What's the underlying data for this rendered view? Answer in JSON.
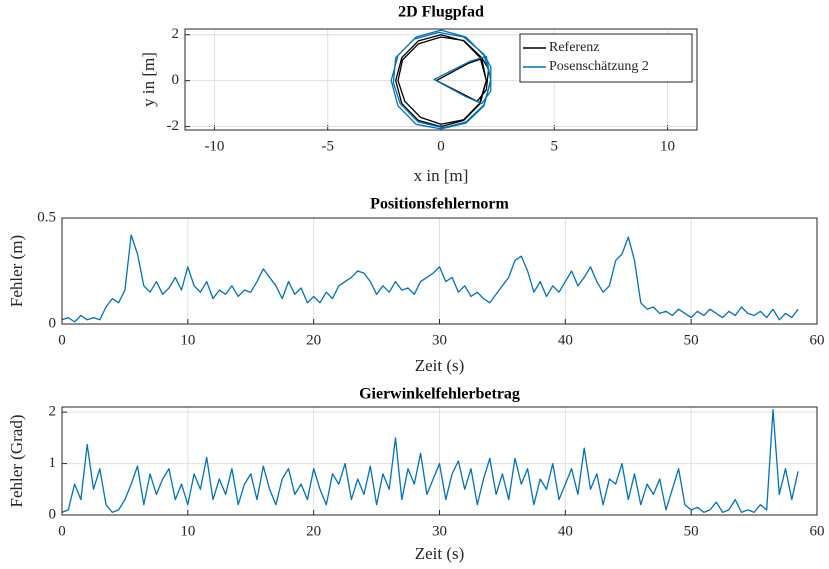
{
  "chart_data": [
    {
      "type": "line",
      "title": "2D Flugpfad",
      "x_label": "x in [m]",
      "y_label": "y in [m]",
      "xlim": [
        -11.3,
        11.3
      ],
      "ylim": [
        -2.15,
        2.25
      ],
      "xticks": [
        -10,
        -5,
        0,
        5,
        10
      ],
      "yticks": [
        -2,
        0,
        2
      ],
      "grid": true,
      "legend": "upper right",
      "series": [
        {
          "name": "Referenz",
          "color": "#000000",
          "x": [
            2,
            1.73,
            1,
            0,
            -1,
            -1.73,
            -2,
            -1.73,
            -1,
            0,
            1,
            1.73,
            2,
            1.8,
            1.2,
            -0.2,
            1.0,
            1.6,
            2.0,
            2.1,
            1.8,
            1.0,
            0,
            -1,
            -1.7,
            -1.9,
            -1.6,
            -0.9,
            0,
            1,
            1.7,
            2.0
          ],
          "values": [
            0,
            1,
            1.73,
            2,
            1.73,
            1,
            0,
            -1,
            -1.73,
            -2,
            -1.73,
            -1,
            0,
            0.95,
            0.75,
            0,
            -0.6,
            -0.9,
            -0.4,
            0.5,
            1.0,
            1.75,
            1.9,
            1.6,
            0.9,
            0,
            -0.9,
            -1.6,
            -1.9,
            -1.7,
            -1.0,
            0
          ]
        },
        {
          "name": "Posenschätzung 2",
          "color": "#0072bd",
          "x": [
            2.2,
            1.9,
            1.1,
            0,
            -1.1,
            -1.9,
            -2.2,
            -1.9,
            -1.1,
            0,
            1.1,
            1.9,
            2.2,
            2.0,
            1.3,
            -0.3,
            1.1,
            1.8,
            2.2,
            2.2,
            1.9,
            1.0,
            -0.1,
            -1.2,
            -2.0,
            -2.1,
            -1.8,
            -1.0,
            0.1,
            1.1,
            1.9,
            2.2
          ],
          "values": [
            0.1,
            1.1,
            1.9,
            2.2,
            1.9,
            1.1,
            0,
            -1.1,
            -1.9,
            -2.1,
            -1.85,
            -1.1,
            0,
            1.05,
            0.85,
            0.05,
            -0.7,
            -1.0,
            -0.45,
            0.6,
            1.15,
            1.9,
            2.1,
            1.8,
            1.0,
            -0.1,
            -1.0,
            -1.8,
            -2.05,
            -1.8,
            -1.05,
            0.05
          ]
        }
      ]
    },
    {
      "type": "line",
      "title": "Positionsfehlernorm",
      "x_label": "Zeit (s)",
      "y_label": "Fehler (m)",
      "xlim": [
        0,
        60
      ],
      "ylim": [
        0,
        0.5
      ],
      "xticks": [
        0,
        10,
        20,
        30,
        40,
        50,
        60
      ],
      "yticks": [
        0,
        0.5
      ],
      "grid": true,
      "color": "#0072bd",
      "x": [
        0,
        0.5,
        1,
        1.5,
        2,
        2.5,
        3,
        3.5,
        4,
        4.5,
        5,
        5.5,
        6,
        6.5,
        7,
        7.5,
        8,
        8.5,
        9,
        9.5,
        10,
        10.5,
        11,
        11.5,
        12,
        12.5,
        13,
        13.5,
        14,
        14.5,
        15,
        15.5,
        16,
        16.5,
        17,
        17.5,
        18,
        18.5,
        19,
        19.5,
        20,
        20.5,
        21,
        21.5,
        22,
        22.5,
        23,
        23.5,
        24,
        24.5,
        25,
        25.5,
        26,
        26.5,
        27,
        27.5,
        28,
        28.5,
        29,
        29.5,
        30,
        30.5,
        31,
        31.5,
        32,
        32.5,
        33,
        33.5,
        34,
        34.5,
        35,
        35.5,
        36,
        36.5,
        37,
        37.5,
        38,
        38.5,
        39,
        39.5,
        40,
        40.5,
        41,
        41.5,
        42,
        42.5,
        43,
        43.5,
        44,
        44.5,
        45,
        45.5,
        46,
        46.5,
        47,
        47.5,
        48,
        48.5,
        49,
        49.5,
        50,
        50.5,
        51,
        51.5,
        52,
        52.5,
        53,
        53.5,
        54,
        54.5,
        55,
        55.5,
        56,
        56.5,
        57,
        57.5,
        58,
        58.5
      ],
      "values": [
        0.02,
        0.03,
        0.01,
        0.04,
        0.02,
        0.03,
        0.02,
        0.08,
        0.12,
        0.1,
        0.16,
        0.42,
        0.33,
        0.18,
        0.15,
        0.2,
        0.14,
        0.17,
        0.22,
        0.16,
        0.27,
        0.18,
        0.15,
        0.2,
        0.12,
        0.16,
        0.14,
        0.18,
        0.13,
        0.16,
        0.15,
        0.2,
        0.26,
        0.22,
        0.18,
        0.12,
        0.2,
        0.14,
        0.17,
        0.1,
        0.13,
        0.1,
        0.15,
        0.12,
        0.18,
        0.2,
        0.22,
        0.25,
        0.24,
        0.2,
        0.14,
        0.18,
        0.15,
        0.2,
        0.16,
        0.17,
        0.14,
        0.2,
        0.22,
        0.24,
        0.27,
        0.2,
        0.22,
        0.15,
        0.18,
        0.13,
        0.15,
        0.12,
        0.1,
        0.14,
        0.18,
        0.22,
        0.3,
        0.32,
        0.25,
        0.15,
        0.2,
        0.13,
        0.18,
        0.15,
        0.2,
        0.25,
        0.18,
        0.22,
        0.27,
        0.2,
        0.15,
        0.18,
        0.3,
        0.33,
        0.41,
        0.3,
        0.1,
        0.07,
        0.08,
        0.05,
        0.06,
        0.04,
        0.07,
        0.05,
        0.03,
        0.06,
        0.04,
        0.07,
        0.05,
        0.03,
        0.06,
        0.04,
        0.08,
        0.05,
        0.04,
        0.06,
        0.03,
        0.07,
        0.02,
        0.05,
        0.03,
        0.07
      ]
    },
    {
      "type": "line",
      "title": "Gierwinkelfehlerbetrag",
      "x_label": "Zeit (s)",
      "y_label": "Fehler (Grad)",
      "xlim": [
        0,
        60
      ],
      "ylim": [
        0,
        2.1
      ],
      "xticks": [
        0,
        10,
        20,
        30,
        40,
        50,
        60
      ],
      "yticks": [
        0,
        1,
        2
      ],
      "grid": true,
      "color": "#0072bd",
      "x": [
        0,
        0.5,
        1,
        1.5,
        2,
        2.5,
        3,
        3.5,
        4,
        4.5,
        5,
        5.5,
        6,
        6.5,
        7,
        7.5,
        8,
        8.5,
        9,
        9.5,
        10,
        10.5,
        11,
        11.5,
        12,
        12.5,
        13,
        13.5,
        14,
        14.5,
        15,
        15.5,
        16,
        16.5,
        17,
        17.5,
        18,
        18.5,
        19,
        19.5,
        20,
        20.5,
        21,
        21.5,
        22,
        22.5,
        23,
        23.5,
        24,
        24.5,
        25,
        25.5,
        26,
        26.5,
        27,
        27.5,
        28,
        28.5,
        29,
        29.5,
        30,
        30.5,
        31,
        31.5,
        32,
        32.5,
        33,
        33.5,
        34,
        34.5,
        35,
        35.5,
        36,
        36.5,
        37,
        37.5,
        38,
        38.5,
        39,
        39.5,
        40,
        40.5,
        41,
        41.5,
        42,
        42.5,
        43,
        43.5,
        44,
        44.5,
        45,
        45.5,
        46,
        46.5,
        47,
        47.5,
        48,
        48.5,
        49,
        49.5,
        50,
        50.5,
        51,
        51.5,
        52,
        52.5,
        53,
        53.5,
        54,
        54.5,
        55,
        55.5,
        56,
        56.5,
        57,
        57.5,
        58,
        58.5
      ],
      "values": [
        0.05,
        0.1,
        0.6,
        0.3,
        1.37,
        0.5,
        0.9,
        0.2,
        0.05,
        0.1,
        0.3,
        0.6,
        0.95,
        0.2,
        0.8,
        0.4,
        0.7,
        0.9,
        0.3,
        0.6,
        0.2,
        0.8,
        0.5,
        1.12,
        0.3,
        0.7,
        0.4,
        0.9,
        0.2,
        0.6,
        0.8,
        0.3,
        0.95,
        0.5,
        0.2,
        0.7,
        0.9,
        0.4,
        0.6,
        0.3,
        0.9,
        0.5,
        0.2,
        0.8,
        0.6,
        1.0,
        0.3,
        0.7,
        0.4,
        0.95,
        0.2,
        0.8,
        0.5,
        1.5,
        0.3,
        0.9,
        0.6,
        1.2,
        0.4,
        0.7,
        1.0,
        0.3,
        0.8,
        1.05,
        0.5,
        0.9,
        0.2,
        0.7,
        1.1,
        0.4,
        0.8,
        0.3,
        1.1,
        0.6,
        0.9,
        0.2,
        0.7,
        0.5,
        1.0,
        0.3,
        0.6,
        0.9,
        0.4,
        1.3,
        0.5,
        0.8,
        0.2,
        0.7,
        0.6,
        1.0,
        0.3,
        0.8,
        0.2,
        0.6,
        0.4,
        0.7,
        0.1,
        0.5,
        0.9,
        0.2,
        0.1,
        0.15,
        0.05,
        0.1,
        0.25,
        0.05,
        0.1,
        0.3,
        0.05,
        0.1,
        0.05,
        0.2,
        0.1,
        2.05,
        0.4,
        0.9,
        0.3,
        0.85
      ]
    }
  ]
}
